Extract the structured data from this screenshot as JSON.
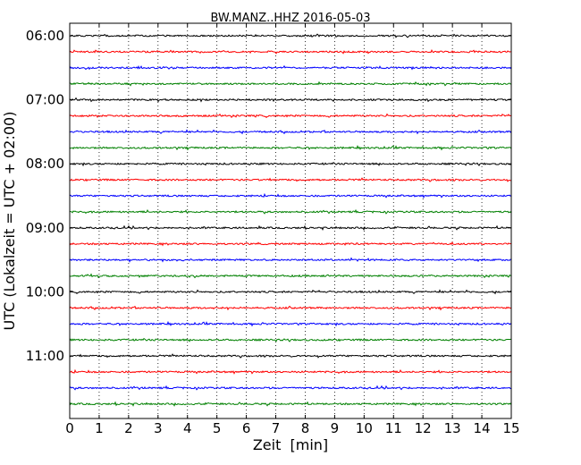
{
  "chart_data": {
    "type": "line",
    "title": "BW.MANZ..HHZ 2016-05-03",
    "xlabel": "Zeit  [min]",
    "ylabel": "UTC (Lokalzeit = UTC + 02:00)",
    "xlim": [
      0,
      15
    ],
    "x_ticks": [
      0,
      1,
      2,
      3,
      4,
      5,
      6,
      7,
      8,
      9,
      10,
      11,
      12,
      13,
      14,
      15
    ],
    "y_tick_labels": [
      "06:00",
      "07:00",
      "08:00",
      "09:00",
      "10:00",
      "11:00"
    ],
    "trace_start_times": [
      "06:00",
      "06:15",
      "06:30",
      "06:45",
      "07:00",
      "07:15",
      "07:30",
      "07:45",
      "08:00",
      "08:15",
      "08:30",
      "08:45",
      "09:00",
      "09:15",
      "09:30",
      "09:45",
      "10:00",
      "10:15",
      "10:30",
      "10:45",
      "11:00",
      "11:15",
      "11:30",
      "11:45"
    ],
    "color_cycle": [
      "#000000",
      "#ff0000",
      "#0000ff",
      "#008000"
    ],
    "vertical_grid": "dotted",
    "legend": "none"
  }
}
